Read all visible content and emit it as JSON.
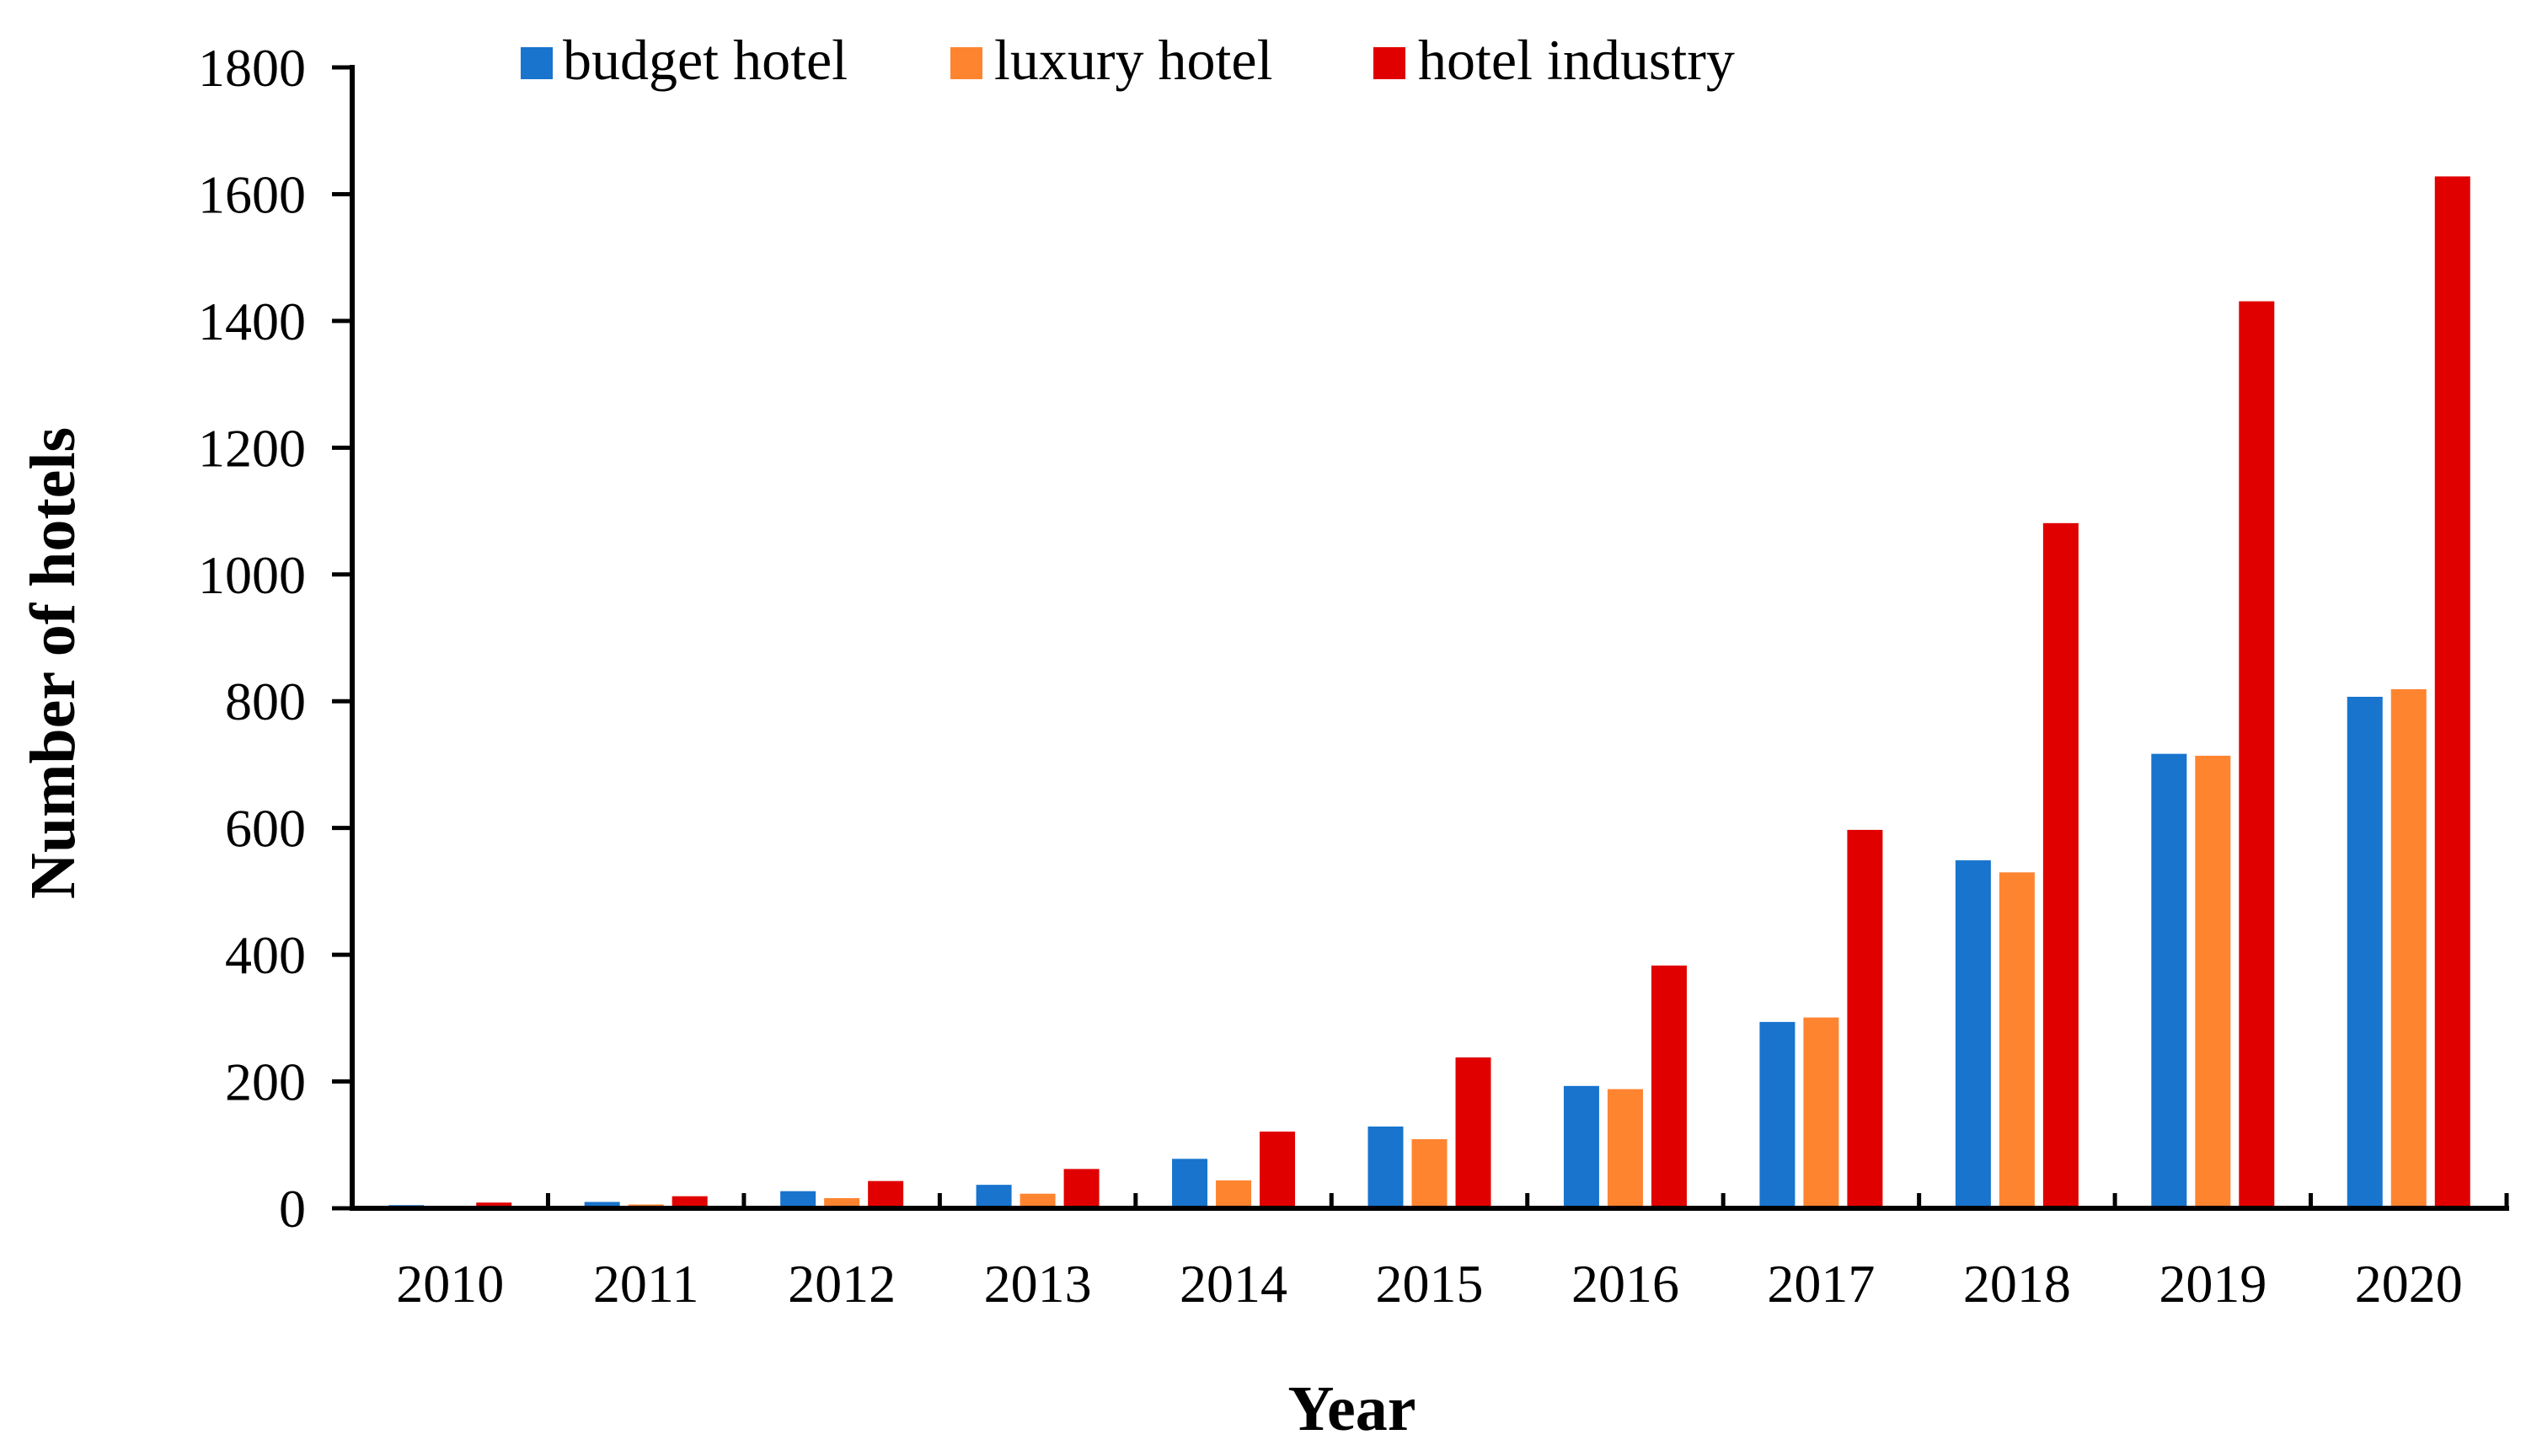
{
  "chart_data": {
    "type": "bar",
    "title": "",
    "xlabel": "Year",
    "ylabel": "Number of hotels",
    "ylim": [
      0,
      1800
    ],
    "yticks": [
      0,
      200,
      400,
      600,
      800,
      1000,
      1200,
      1400,
      1600,
      1800
    ],
    "categories": [
      "2010",
      "2011",
      "2012",
      "2013",
      "2014",
      "2015",
      "2016",
      "2017",
      "2018",
      "2019",
      "2020"
    ],
    "series": [
      {
        "name": "budget hotel",
        "color": "#1874CD",
        "values": [
          5,
          10,
          27,
          37,
          78,
          129,
          193,
          294,
          549,
          717,
          807
        ]
      },
      {
        "name": "luxury hotel",
        "color": "#FF8430",
        "values": [
          3,
          6,
          16,
          23,
          44,
          109,
          188,
          301,
          530,
          714,
          819
        ]
      },
      {
        "name": "hotel industry",
        "color": "#E00000",
        "values": [
          9,
          19,
          43,
          62,
          121,
          238,
          383,
          597,
          1081,
          1431,
          1628
        ]
      }
    ],
    "grid": false,
    "legend_position": "top-center"
  }
}
